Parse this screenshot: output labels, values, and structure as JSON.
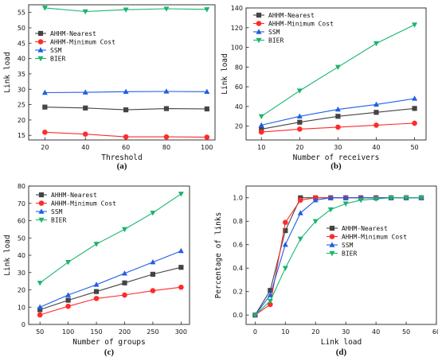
{
  "chart_data": [
    {
      "type": "line",
      "caption": "(a)",
      "xlabel": "Threshold",
      "ylabel": "Link load",
      "x": [
        20,
        40,
        60,
        80,
        100
      ],
      "xlim": [
        12,
        104
      ],
      "ylim": [
        13.5,
        57.5
      ],
      "xticks": [
        20,
        40,
        60,
        80,
        100
      ],
      "yticks": [
        15,
        20,
        25,
        30,
        35,
        40,
        45,
        50,
        55
      ],
      "legend_position": "left",
      "series": [
        {
          "name": "AHHM-Nearest",
          "color": "#444444",
          "marker": "square",
          "values": [
            24.2,
            23.9,
            23.3,
            23.7,
            23.6
          ]
        },
        {
          "name": "AHHM-Minimum Cost",
          "color": "#ff2b2b",
          "marker": "circle",
          "values": [
            16.0,
            15.4,
            14.5,
            14.5,
            14.4
          ]
        },
        {
          "name": "SSM",
          "color": "#1e5ee6",
          "marker": "triangle-up",
          "values": [
            28.9,
            29.0,
            29.2,
            29.3,
            29.2
          ]
        },
        {
          "name": "BIER",
          "color": "#19b46e",
          "marker": "triangle-down",
          "values": [
            56.5,
            55.3,
            55.9,
            56.2,
            56.0
          ]
        }
      ]
    },
    {
      "type": "line",
      "caption": "(b)",
      "xlabel": "Number of receivers",
      "ylabel": "Link load",
      "x": [
        10,
        20,
        30,
        40,
        50
      ],
      "xlim": [
        6,
        53
      ],
      "ylim": [
        6,
        140
      ],
      "xticks": [
        10,
        20,
        30,
        40,
        50
      ],
      "yticks": [
        20,
        40,
        60,
        80,
        100,
        120,
        140
      ],
      "legend_position": "top-left",
      "series": [
        {
          "name": "AHHM-Nearest",
          "color": "#444444",
          "marker": "square",
          "values": [
            17,
            24,
            30,
            34,
            38
          ]
        },
        {
          "name": "AHHM-Minimum Cost",
          "color": "#ff2b2b",
          "marker": "circle",
          "values": [
            14,
            17,
            19,
            21,
            23
          ]
        },
        {
          "name": "SSM",
          "color": "#1e5ee6",
          "marker": "triangle-up",
          "values": [
            21,
            30,
            37,
            42,
            48
          ]
        },
        {
          "name": "BIER",
          "color": "#19b46e",
          "marker": "triangle-down",
          "values": [
            30,
            56,
            80,
            104,
            123
          ]
        }
      ]
    },
    {
      "type": "line",
      "caption": "(c)",
      "xlabel": "Number of groups",
      "ylabel": "Link load",
      "x": [
        50,
        100,
        150,
        200,
        250,
        300
      ],
      "xlim": [
        30,
        315
      ],
      "ylim": [
        0,
        80
      ],
      "xticks": [
        50,
        100,
        150,
        200,
        250,
        300
      ],
      "yticks": [
        0,
        10,
        20,
        30,
        40,
        50,
        60,
        70,
        80
      ],
      "legend_position": "top-left",
      "series": [
        {
          "name": "AHHM-Nearest",
          "color": "#444444",
          "marker": "square",
          "values": [
            8.5,
            14,
            19,
            24,
            29,
            33
          ]
        },
        {
          "name": "AHHM-Minimum Cost",
          "color": "#ff2b2b",
          "marker": "circle",
          "values": [
            5.5,
            10.5,
            15,
            17,
            19.5,
            21.5
          ]
        },
        {
          "name": "SSM",
          "color": "#1e5ee6",
          "marker": "triangle-up",
          "values": [
            10,
            17,
            23,
            29.5,
            36,
            42.5
          ]
        },
        {
          "name": "BIER",
          "color": "#19b46e",
          "marker": "triangle-down",
          "values": [
            24,
            36,
            46.5,
            55,
            64.5,
            75.5
          ]
        }
      ]
    },
    {
      "type": "line",
      "caption": "(d)",
      "xlabel": "Link load",
      "ylabel": "Percentage of links",
      "xlim": [
        -3,
        60
      ],
      "ylim": [
        -0.08,
        1.1
      ],
      "xticks": [
        0,
        10,
        20,
        30,
        40,
        50,
        60
      ],
      "yticks": [
        0.0,
        0.2,
        0.4,
        0.6,
        0.8,
        1.0
      ],
      "legend_position": "center-right",
      "series": [
        {
          "name": "AHHM-Nearest",
          "color": "#444444",
          "marker": "square",
          "x": [
            0,
            5,
            10,
            15,
            20,
            25,
            30,
            35,
            40,
            45,
            50,
            55
          ],
          "values": [
            0.0,
            0.21,
            0.72,
            1.0,
            1.0,
            1.0,
            1.0,
            1.0,
            1.0,
            1.0,
            1.0,
            1.0
          ]
        },
        {
          "name": "AHHM-Minimum Cost",
          "color": "#ff2b2b",
          "marker": "circle",
          "x": [
            0,
            5,
            10,
            15,
            20,
            25,
            30,
            35,
            40,
            45,
            50,
            55
          ],
          "values": [
            0.0,
            0.09,
            0.79,
            0.98,
            1.0,
            1.0,
            1.0,
            1.0,
            1.0,
            1.0,
            1.0,
            1.0
          ]
        },
        {
          "name": "SSM",
          "color": "#1e5ee6",
          "marker": "triangle-up",
          "x": [
            0,
            5,
            10,
            15,
            20,
            25,
            30,
            35,
            40,
            45,
            50,
            55
          ],
          "values": [
            0.0,
            0.17,
            0.6,
            0.87,
            0.98,
            1.0,
            1.0,
            1.0,
            1.0,
            1.0,
            1.0,
            1.0
          ]
        },
        {
          "name": "BIER",
          "color": "#19b46e",
          "marker": "triangle-down",
          "x": [
            0,
            5,
            10,
            15,
            20,
            25,
            30,
            35,
            40,
            45,
            50,
            55
          ],
          "values": [
            0.0,
            0.12,
            0.4,
            0.65,
            0.8,
            0.9,
            0.95,
            0.98,
            0.99,
            1.0,
            1.0,
            1.0
          ]
        }
      ]
    }
  ]
}
